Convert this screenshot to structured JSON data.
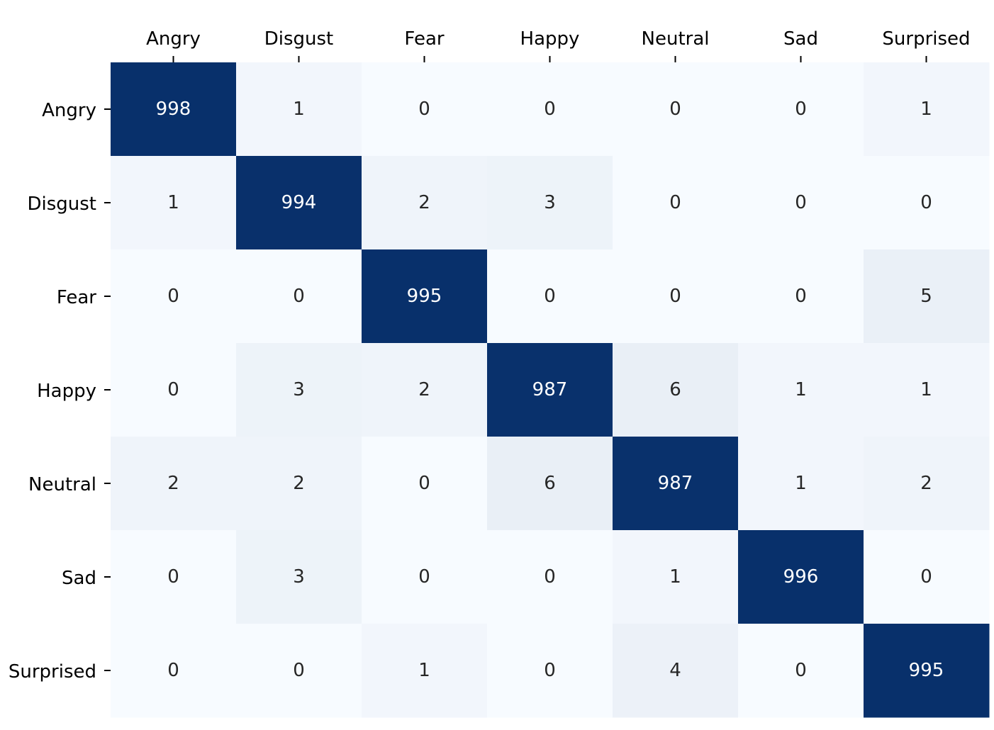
{
  "chart_data": {
    "type": "heatmap",
    "title": "",
    "xlabel": "",
    "ylabel": "",
    "x_categories": [
      "Angry",
      "Disgust",
      "Fear",
      "Happy",
      "Neutral",
      "Sad",
      "Surprised"
    ],
    "y_categories": [
      "Angry",
      "Disgust",
      "Fear",
      "Happy",
      "Neutral",
      "Sad",
      "Surprised"
    ],
    "x_axis_position": "top",
    "values": [
      [
        998,
        1,
        0,
        0,
        0,
        0,
        1
      ],
      [
        1,
        994,
        2,
        3,
        0,
        0,
        0
      ],
      [
        0,
        0,
        995,
        0,
        0,
        0,
        5
      ],
      [
        0,
        3,
        2,
        987,
        6,
        1,
        1
      ],
      [
        2,
        2,
        0,
        6,
        987,
        1,
        2
      ],
      [
        0,
        3,
        0,
        0,
        1,
        996,
        0
      ],
      [
        0,
        0,
        1,
        0,
        4,
        0,
        995
      ]
    ],
    "colormap": "Blues",
    "color_low": "#f7fbff",
    "color_high": "#08306b",
    "value_range": [
      0,
      998
    ],
    "annotations": true,
    "colorbar": false,
    "grid": false
  }
}
